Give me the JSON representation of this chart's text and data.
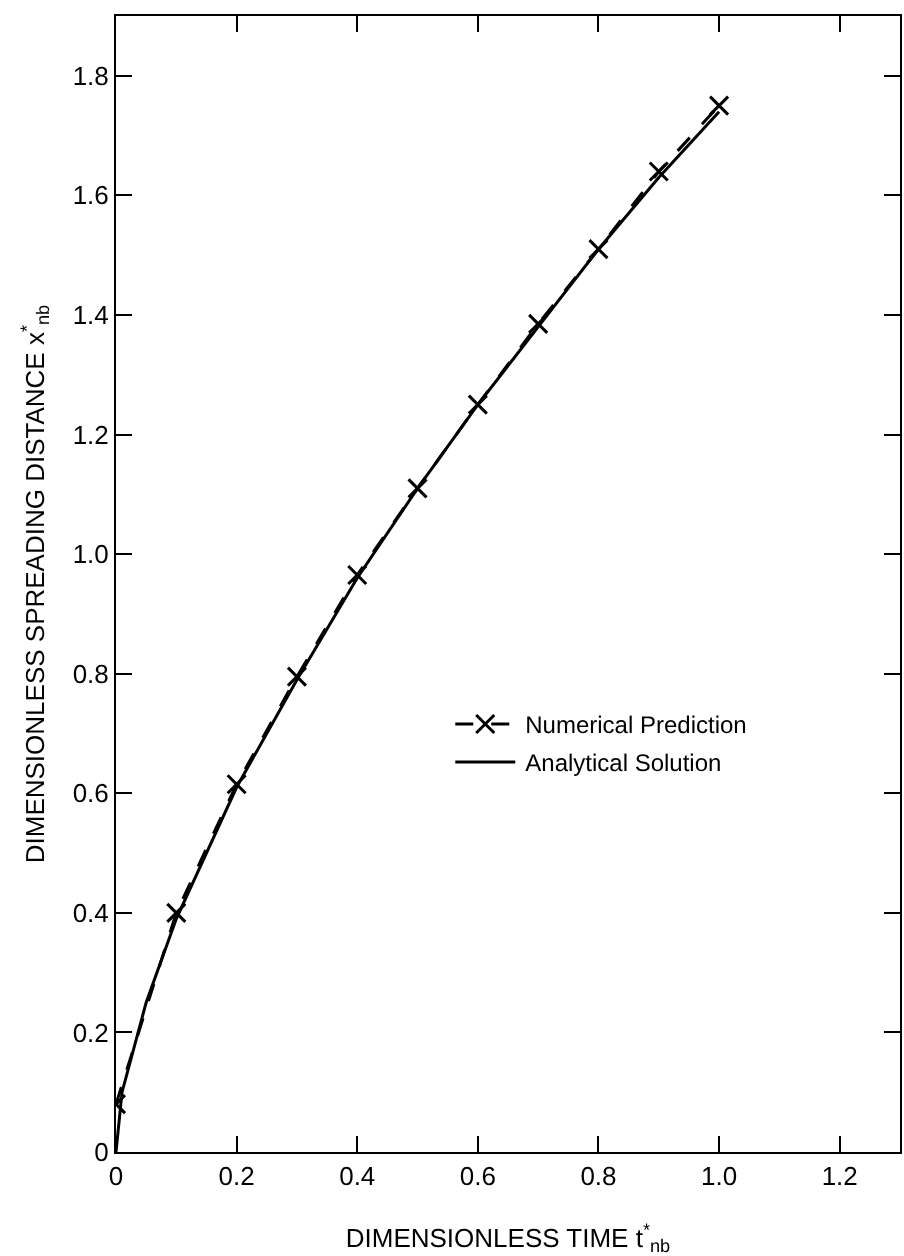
{
  "chart_data": {
    "type": "line",
    "xlabel": "DIMENSIONLESS TIME t$^{*}$$_{nb}$",
    "ylabel": "DIMENSIONLESS SPREADING DISTANCE x$^{*}$$_{nb}$",
    "xlim": [
      0,
      1.3
    ],
    "ylim": [
      0,
      1.9
    ],
    "xticks": [
      0,
      0.2,
      0.4,
      0.6,
      0.8,
      {
        "value": 1,
        "label": "1.0"
      },
      1.2
    ],
    "yticks": [
      0,
      0.2,
      0.4,
      0.6,
      0.8,
      {
        "value": 1,
        "label": "1.0"
      },
      1.2,
      1.4,
      1.6,
      1.8
    ],
    "grid": false,
    "legend": "right",
    "series": [
      {
        "name": "Numerical Prediction",
        "line_style": "dashed",
        "marker": "cross",
        "color": "#000000",
        "x": [
          0,
          0.1,
          0.2,
          0.3,
          0.4,
          0.5,
          0.6,
          0.7,
          0.8,
          0.9,
          1.0
        ],
        "values": [
          0.08,
          0.4,
          0.615,
          0.795,
          0.965,
          1.11,
          1.25,
          1.385,
          1.51,
          1.64,
          1.75
        ]
      },
      {
        "name": "Analytical Solution",
        "line_style": "solid",
        "marker": "none",
        "color": "#000000",
        "x": [
          0,
          0.01,
          0.05,
          0.1,
          0.2,
          0.3,
          0.4,
          0.5,
          0.6,
          0.7,
          0.8,
          0.9,
          1.0
        ],
        "values": [
          0,
          0.1,
          0.25,
          0.39,
          0.61,
          0.79,
          0.96,
          1.11,
          1.25,
          1.38,
          1.51,
          1.63,
          1.74
        ]
      }
    ]
  }
}
